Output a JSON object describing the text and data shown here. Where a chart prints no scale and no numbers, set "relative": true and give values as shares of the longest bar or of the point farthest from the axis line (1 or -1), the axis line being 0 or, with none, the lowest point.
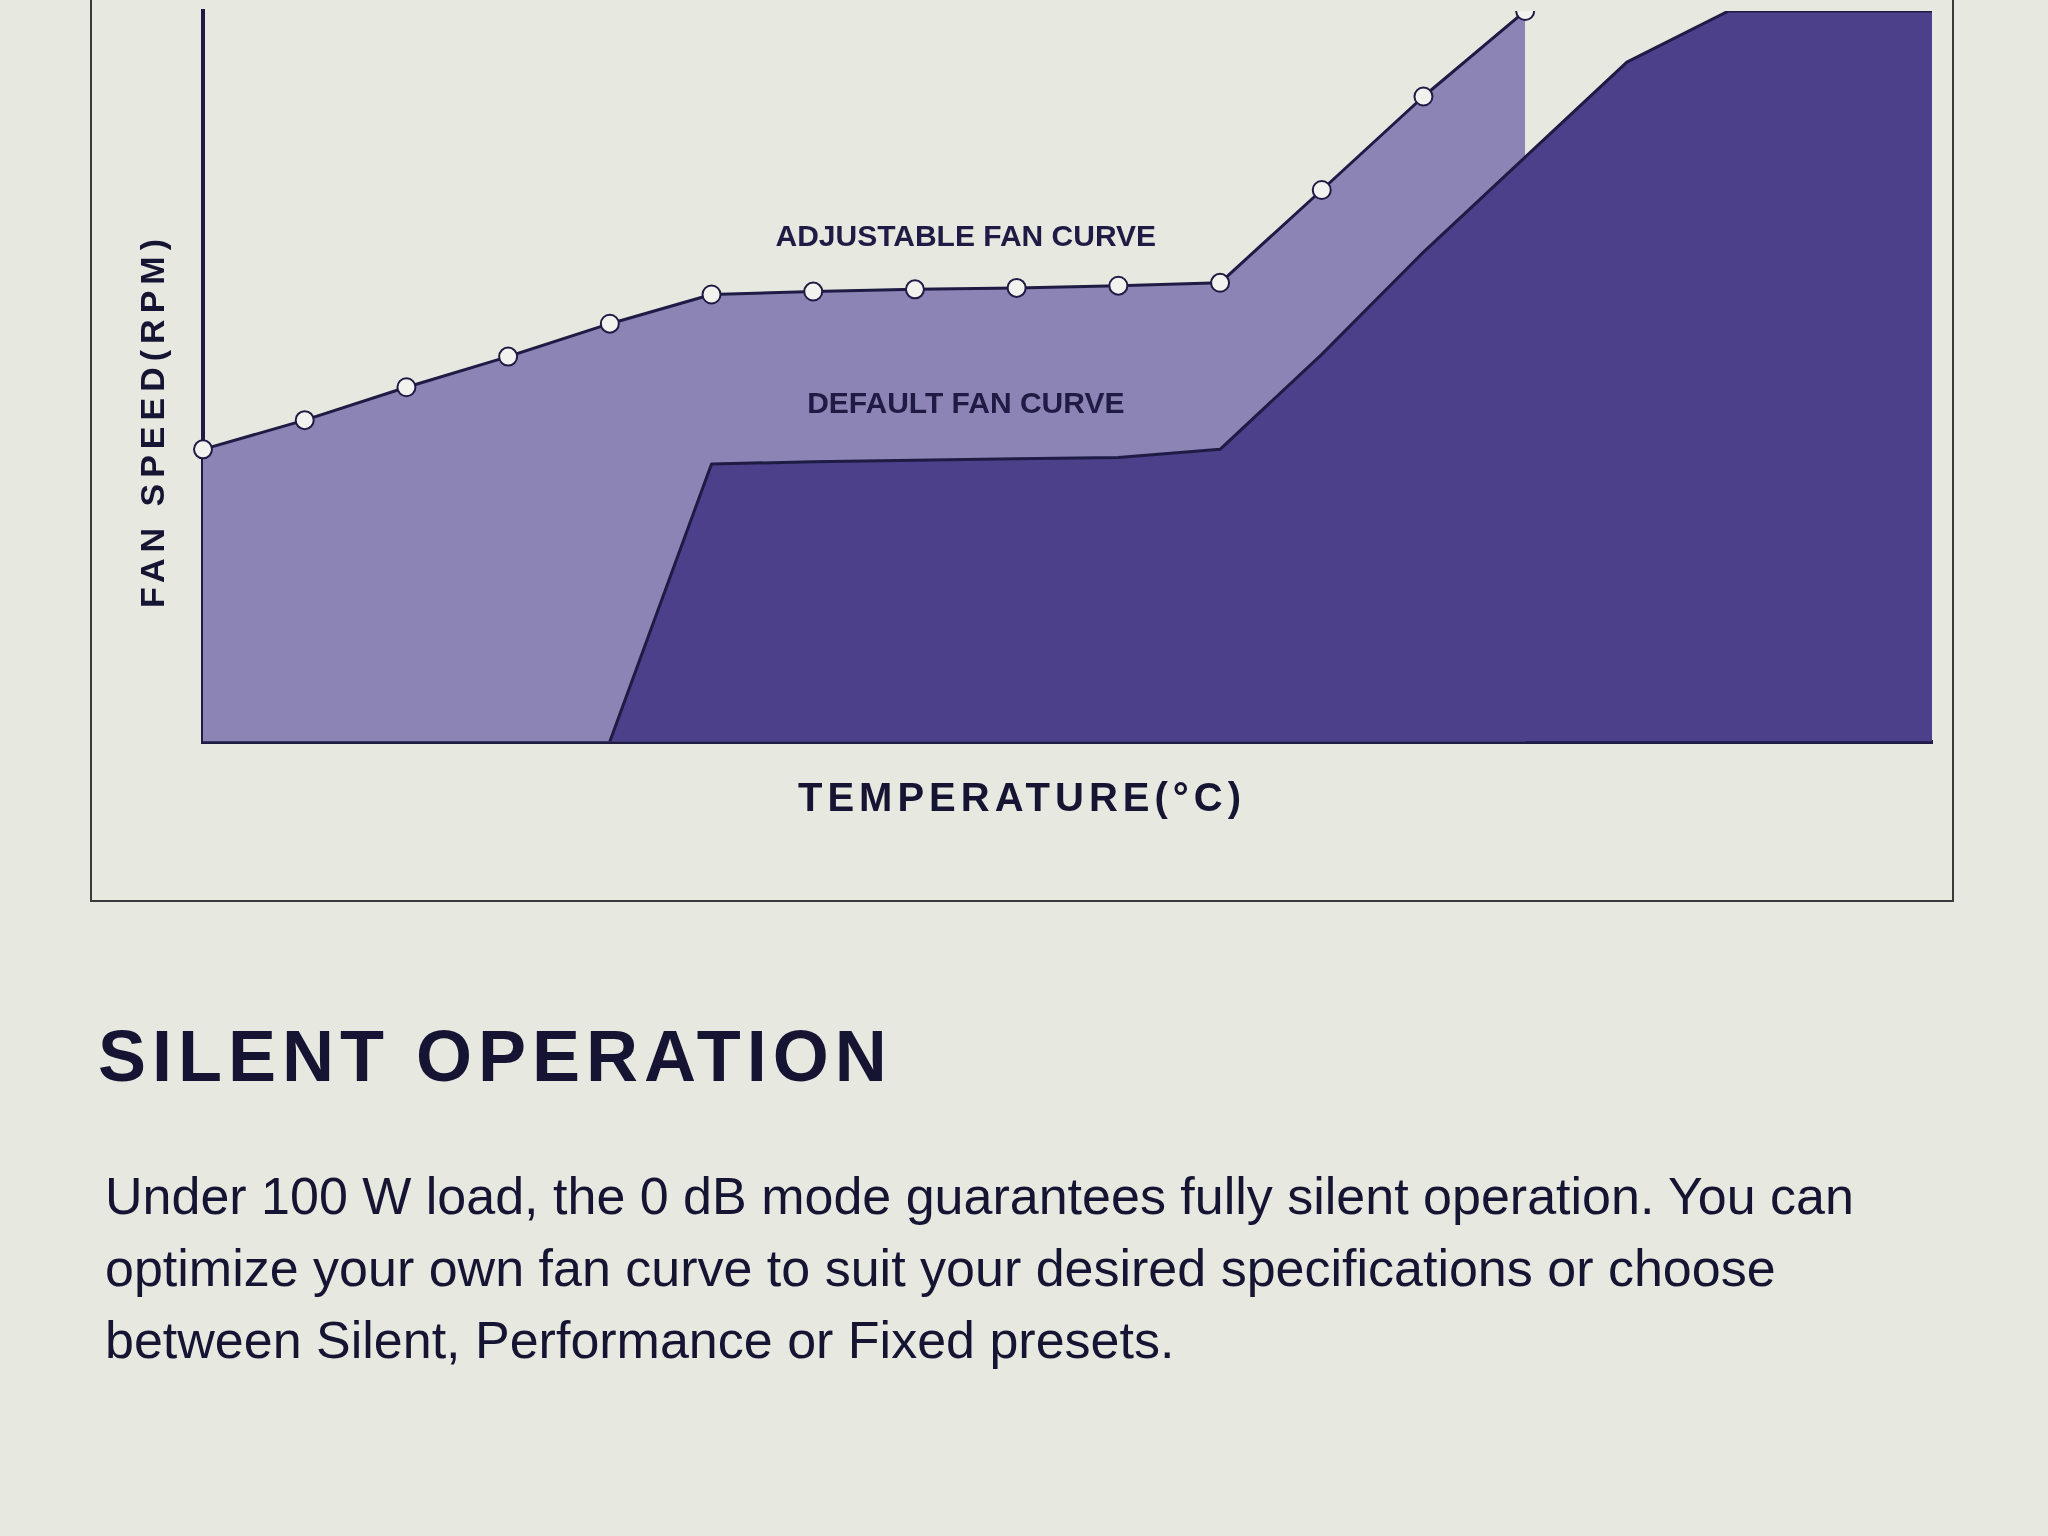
{
  "chart_data": {
    "type": "area",
    "relative": true,
    "title": "SILENT OPERATION",
    "xlabel": "TEMPERATURE(°C)",
    "ylabel": "FAN SPEED(RPM)",
    "marker": "circle",
    "legend": false,
    "grid": false,
    "categories": [
      null,
      null,
      null,
      null,
      null,
      null,
      null,
      null,
      null,
      null,
      null,
      null,
      null,
      null,
      null,
      null,
      null,
      null
    ],
    "series": [
      {
        "name": "DEFAULT FAN CURVE",
        "color": "#4b4089",
        "marker": "none",
        "values": [
          null,
          null,
          null,
          null,
          0,
          0.38,
          0.383,
          0.385,
          0.387,
          0.389,
          0.4,
          0.53,
          0.67,
          0.8,
          0.93,
          1,
          1,
          1
        ]
      },
      {
        "name": "ADJUSTABLE FAN CURVE",
        "color": "#8c84b4",
        "values": [
          0.4,
          0.44,
          0.485,
          0.527,
          0.572,
          0.612,
          0.616,
          0.619,
          0.621,
          0.624,
          0.628,
          0.755,
          0.883,
          1,
          null,
          null,
          null,
          null
        ]
      }
    ],
    "annotations": [
      "Under 100 W load, the 0 dB mode guarantees fully silent operation. You can optimize your own fan curve to suit your desired specifications or choose between Silent, Performance or Fixed presets."
    ]
  }
}
